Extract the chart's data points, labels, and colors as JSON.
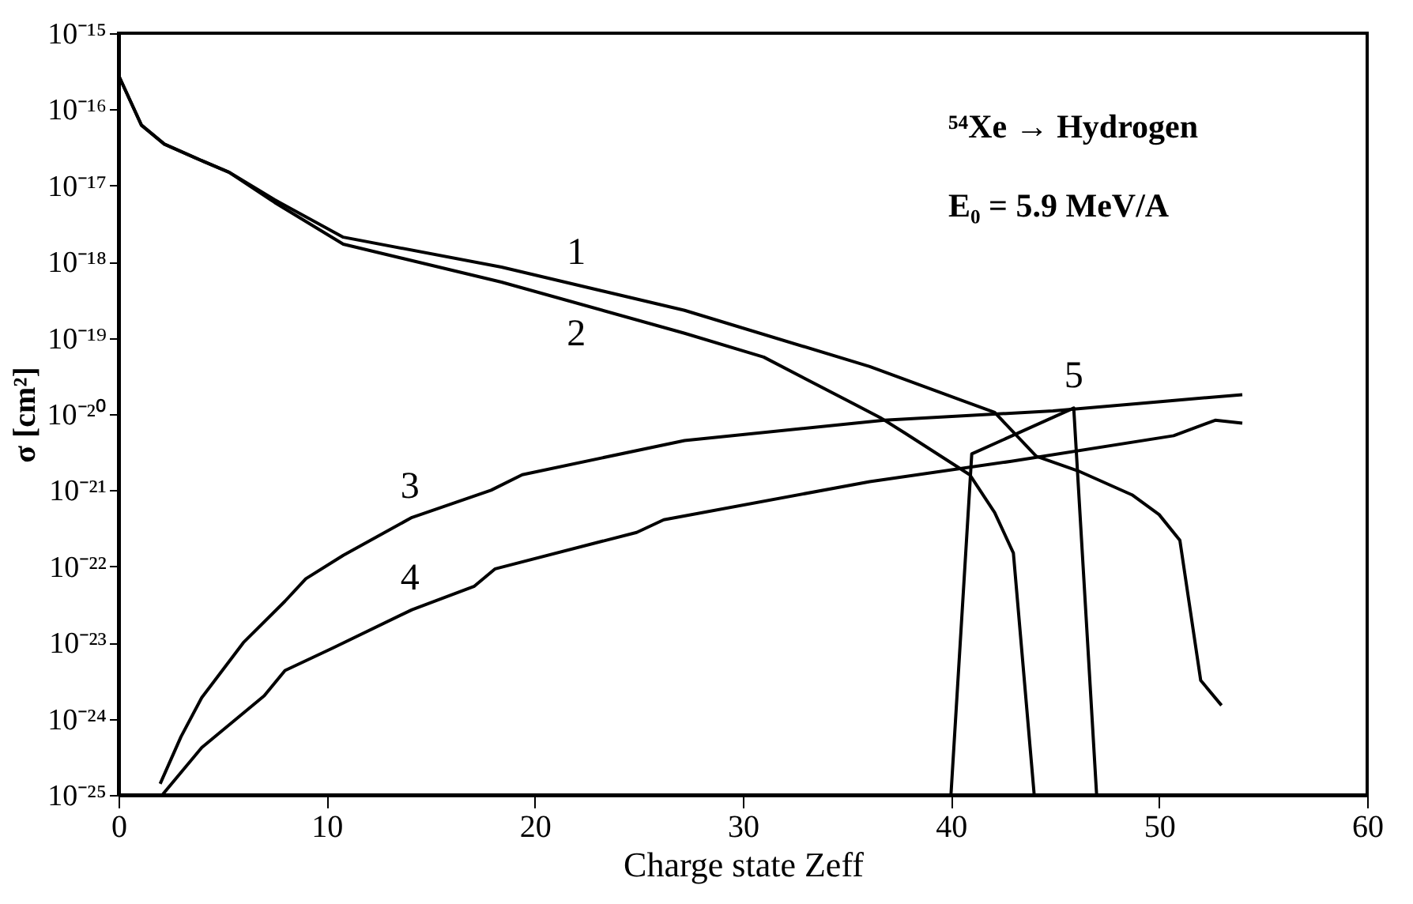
{
  "chart_data": {
    "type": "line",
    "xlabel": "Charge state Zeff",
    "ylabel": "σ [cm²]",
    "xlim": [
      0,
      60
    ],
    "xticks": [
      0,
      10,
      20,
      30,
      40,
      50,
      60
    ],
    "ylim": [
      1e-25,
      1e-15
    ],
    "yticks": [
      {
        "value": 1e-25,
        "label": "10⁻²⁵"
      },
      {
        "value": 1e-24,
        "label": "10⁻²⁴"
      },
      {
        "value": 1e-23,
        "label": "10⁻²³"
      },
      {
        "value": 1e-22,
        "label": "10⁻²²"
      },
      {
        "value": 1e-21,
        "label": "10⁻²¹"
      },
      {
        "value": 1e-20,
        "label": "10⁻²⁰"
      },
      {
        "value": 1e-19,
        "label": "10⁻¹⁹"
      },
      {
        "value": 1e-18,
        "label": "10⁻¹⁸"
      },
      {
        "value": 1e-17,
        "label": "10⁻¹⁷"
      },
      {
        "value": 1e-16,
        "label": "10⁻¹⁶"
      },
      {
        "value": 1e-15,
        "label": "10⁻¹⁵"
      }
    ],
    "log": true,
    "grid": false,
    "marker": "none",
    "line_style": "solid",
    "series": [
      {
        "color": "#000000",
        "x": [
          0,
          1.1,
          2.2,
          3.7,
          5.3,
          7.5,
          10.8,
          18.4,
          27.2,
          36.1,
          42.1,
          44.1,
          46.1,
          48.7,
          50,
          51,
          52,
          53
        ],
        "values": [
          2.8e-16,
          6.2e-17,
          3.5e-17,
          2.3e-17,
          1.5e-17,
          6.5e-18,
          2.1e-18,
          8.5e-19,
          2.3e-19,
          4.2e-20,
          1.05e-20,
          2.8e-21,
          1.8e-21,
          8.7e-22,
          4.8e-22,
          2.2e-22,
          3.2e-24,
          1.5e-24
        ]
      },
      {
        "color": "#000000",
        "x": [
          0,
          1.1,
          2.2,
          3.7,
          5.3,
          7.5,
          10.8,
          18.4,
          27.2,
          31,
          36.6,
          37.8,
          40.9,
          42.1,
          43,
          44
        ],
        "values": [
          2.8e-16,
          6.2e-17,
          3.5e-17,
          2.3e-17,
          1.5e-17,
          6e-18,
          1.7e-18,
          5.4e-19,
          1.15e-19,
          5.6e-20,
          9e-21,
          5.6e-21,
          1.6e-21,
          5.1e-22,
          1.5e-22,
          1e-25
        ]
      },
      {
        "color": "#000000",
        "x": [
          2,
          3,
          4,
          6,
          8,
          9,
          10.8,
          14.1,
          17.9,
          19.4,
          27.2,
          36.8,
          44.9,
          54
        ],
        "values": [
          1.4e-25,
          5.8e-25,
          1.9e-24,
          1e-23,
          3.5e-23,
          6.9e-23,
          1.4e-22,
          4.4e-22,
          1e-21,
          1.6e-21,
          4.5e-21,
          8.3e-21,
          1.1e-20,
          1.8e-20
        ]
      },
      {
        "color": "#000000",
        "x": [
          2.1,
          4,
          7,
          8,
          10.3,
          14.1,
          17.1,
          18.1,
          24.9,
          26.2,
          36.1,
          42.9,
          50.7,
          52.7,
          54
        ],
        "values": [
          1e-25,
          4.2e-25,
          2e-24,
          4.3e-24,
          8.5e-24,
          2.7e-23,
          5.5e-23,
          9.3e-23,
          2.8e-22,
          4.1e-22,
          1.3e-21,
          2.4e-21,
          5.2e-21,
          8.3e-21,
          7.6e-21
        ]
      },
      {
        "color": "#000000",
        "x": [
          40,
          41,
          45.9,
          47
        ],
        "values": [
          1e-25,
          3e-21,
          1.2e-20,
          1e-25
        ]
      }
    ],
    "annotations": [
      "⁵⁴Xe → Hydrogen",
      "E₀ = 5.9 MeV/A",
      {
        "text": "1",
        "x": 22,
        "y": 5e-19
      },
      {
        "text": "2",
        "x": 22,
        "y": 2.9e-19
      },
      {
        "text": "3",
        "x": 14,
        "y": 4.3e-22
      },
      {
        "text": "4",
        "x": 14,
        "y": 2.7e-23
      },
      {
        "text": "5",
        "x": 45.9,
        "y": 1.2e-20
      }
    ]
  }
}
